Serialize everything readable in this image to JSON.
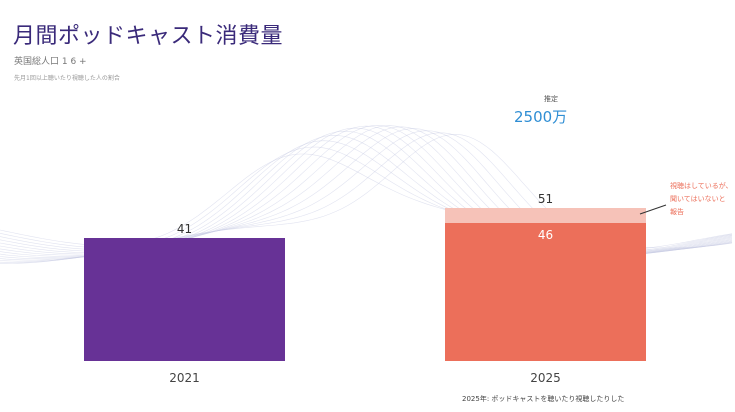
{
  "header": {
    "title": "月間ポッドキャスト消費量",
    "subtitle": "英国総人口 1 6 +",
    "note": "先月1回以上聴いたり視聴した人の割合"
  },
  "estimate": {
    "label": "推定",
    "value": "2500万"
  },
  "annotation": "視聴はしているが､聞いてはいないと報告",
  "footnote": "2025年: ポッドキャストを聴いたり視聴したりした",
  "colors": {
    "bar_2021": "#673296",
    "bar_2025": "#ec6f5a",
    "bar_2025_extra": "#f6c2b8",
    "title": "#3a2a7a",
    "estimate": "#2f8ed4"
  },
  "chart_data": {
    "type": "bar",
    "title": "月間ポッドキャスト消費量",
    "categories": [
      "2021",
      "2025"
    ],
    "series": [
      {
        "values": [
          41,
          46
        ]
      },
      {
        "values": [
          0,
          5
        ]
      }
    ],
    "data_labels": {
      "totals": [
        "41",
        "51"
      ],
      "inner": [
        "",
        "46"
      ]
    },
    "stacked": true,
    "ylim": [
      0,
      60
    ],
    "grid": false,
    "legend": "none"
  }
}
